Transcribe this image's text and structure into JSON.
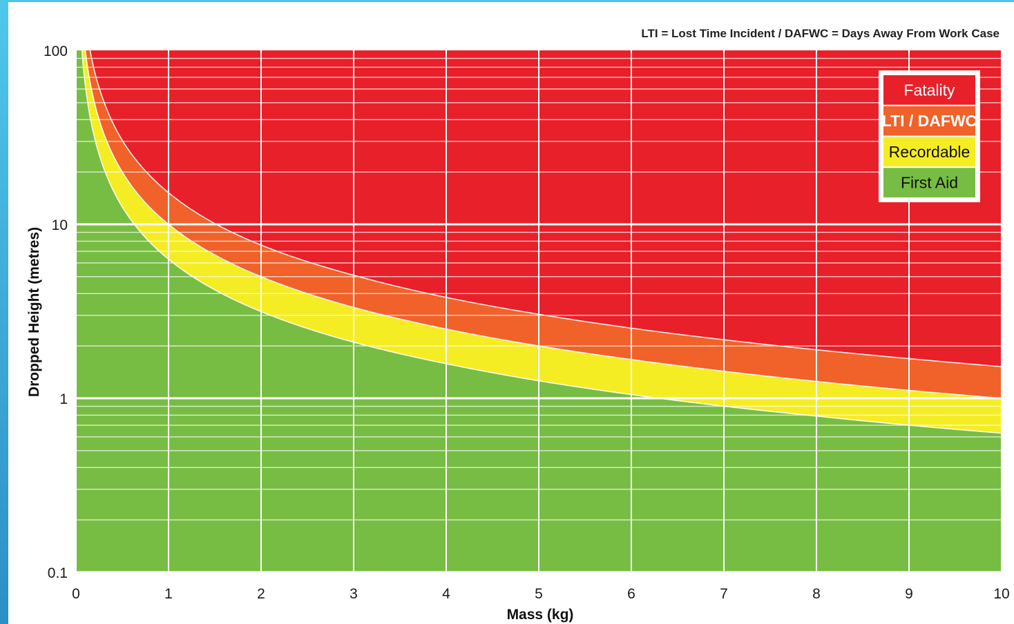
{
  "chart_data": {
    "type": "area",
    "xlabel": "Mass (kg)",
    "ylabel": "Dropped Height (metres)",
    "annotation": "LTI = Lost Time Incident / DAFWC = Days Away From Work Case",
    "xlim": [
      0,
      10
    ],
    "ylim": [
      0.1,
      100
    ],
    "y_scale": "log",
    "grid": true,
    "legend_position": "top-right",
    "x_ticks": [
      "0",
      "1",
      "2",
      "3",
      "4",
      "5",
      "6",
      "7",
      "8",
      "9",
      "10"
    ],
    "y_ticks": [
      {
        "value": 100,
        "label": "100"
      },
      {
        "value": 10,
        "label": "10"
      },
      {
        "value": 1,
        "label": "1"
      },
      {
        "value": 0.1,
        "label": "0.1"
      }
    ],
    "boundary_mass": [
      0.05,
      0.1,
      0.2,
      0.3,
      0.5,
      0.75,
      1,
      1.5,
      2,
      3,
      4,
      5,
      6,
      7,
      8,
      9,
      10
    ],
    "series": [
      {
        "name": "Fatality",
        "color": "#e8202a",
        "lower_boundary": [
          300,
          152,
          76,
          51,
          30.4,
          20.3,
          15.2,
          10.1,
          7.6,
          5.1,
          3.8,
          3.04,
          2.53,
          2.17,
          1.9,
          1.69,
          1.52
        ]
      },
      {
        "name": "LTI / DAFWC",
        "color": "#f0622a",
        "lower_boundary": [
          200,
          100,
          50,
          33.3,
          20,
          13.3,
          10,
          6.67,
          5,
          3.33,
          2.5,
          2,
          1.67,
          1.43,
          1.25,
          1.11,
          1.0
        ]
      },
      {
        "name": "Recordable",
        "color": "#f5ed23",
        "lower_boundary": [
          126,
          63,
          31.5,
          21,
          12.6,
          8.4,
          6.3,
          4.2,
          3.15,
          2.1,
          1.58,
          1.26,
          1.05,
          0.9,
          0.79,
          0.7,
          0.63
        ]
      },
      {
        "name": "First Aid",
        "color": "#77bd43",
        "lower_boundary": [
          0.1,
          0.1,
          0.1,
          0.1,
          0.1,
          0.1,
          0.1,
          0.1,
          0.1,
          0.1,
          0.1,
          0.1,
          0.1,
          0.1,
          0.1,
          0.1,
          0.1
        ]
      }
    ]
  }
}
